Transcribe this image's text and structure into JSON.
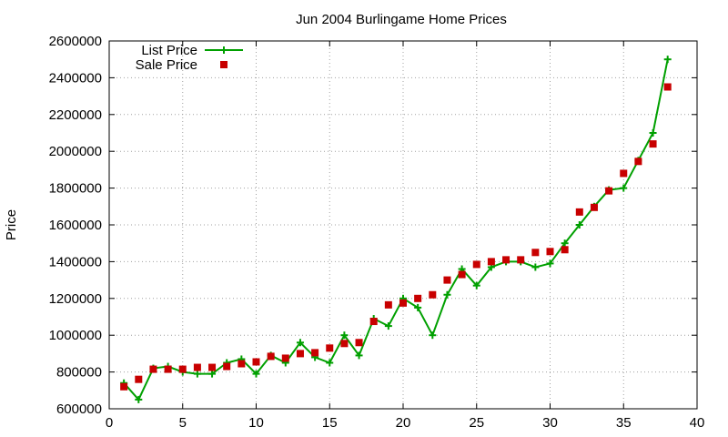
{
  "chart_data": {
    "type": "line",
    "title": "Jun 2004 Burlingame Home Prices",
    "ylabel": "Price",
    "xlabel": "",
    "xlim": [
      0,
      40
    ],
    "ylim": [
      600000,
      2600000
    ],
    "x_ticks": [
      0,
      5,
      10,
      15,
      20,
      25,
      30,
      35,
      40
    ],
    "y_ticks": [
      600000,
      800000,
      1000000,
      1200000,
      1400000,
      1600000,
      1800000,
      2000000,
      2200000,
      2400000,
      2600000
    ],
    "grid": true,
    "legend_position": "top-left",
    "series": [
      {
        "name": "List Price",
        "style": "line-plus",
        "color": "#00a000",
        "x": [
          1,
          2,
          3,
          4,
          5,
          6,
          7,
          8,
          9,
          10,
          11,
          12,
          13,
          14,
          15,
          16,
          17,
          18,
          19,
          20,
          21,
          22,
          23,
          24,
          25,
          26,
          27,
          28,
          29,
          30,
          31,
          32,
          33,
          34,
          35,
          36,
          37,
          38
        ],
        "values": [
          740000,
          650000,
          820000,
          830000,
          800000,
          790000,
          790000,
          850000,
          870000,
          790000,
          890000,
          850000,
          960000,
          880000,
          850000,
          1000000,
          890000,
          1090000,
          1050000,
          1200000,
          1150000,
          1000000,
          1220000,
          1360000,
          1270000,
          1370000,
          1400000,
          1400000,
          1370000,
          1390000,
          1500000,
          1600000,
          1700000,
          1790000,
          1800000,
          1950000,
          2100000,
          2500000
        ]
      },
      {
        "name": "Sale Price",
        "style": "square-points",
        "color": "#c80000",
        "x": [
          1,
          2,
          3,
          4,
          5,
          6,
          7,
          8,
          9,
          10,
          11,
          12,
          13,
          14,
          15,
          16,
          17,
          18,
          19,
          20,
          21,
          22,
          23,
          24,
          25,
          26,
          27,
          28,
          29,
          30,
          31,
          32,
          33,
          34,
          35,
          36,
          37,
          38
        ],
        "values": [
          720000,
          760000,
          815000,
          815000,
          815000,
          825000,
          825000,
          830000,
          845000,
          855000,
          885000,
          875000,
          900000,
          905000,
          930000,
          955000,
          960000,
          1075000,
          1165000,
          1175000,
          1200000,
          1220000,
          1300000,
          1330000,
          1385000,
          1400000,
          1410000,
          1410000,
          1450000,
          1455000,
          1465000,
          1670000,
          1695000,
          1785000,
          1880000,
          1945000,
          2040000,
          2350000
        ]
      }
    ]
  }
}
